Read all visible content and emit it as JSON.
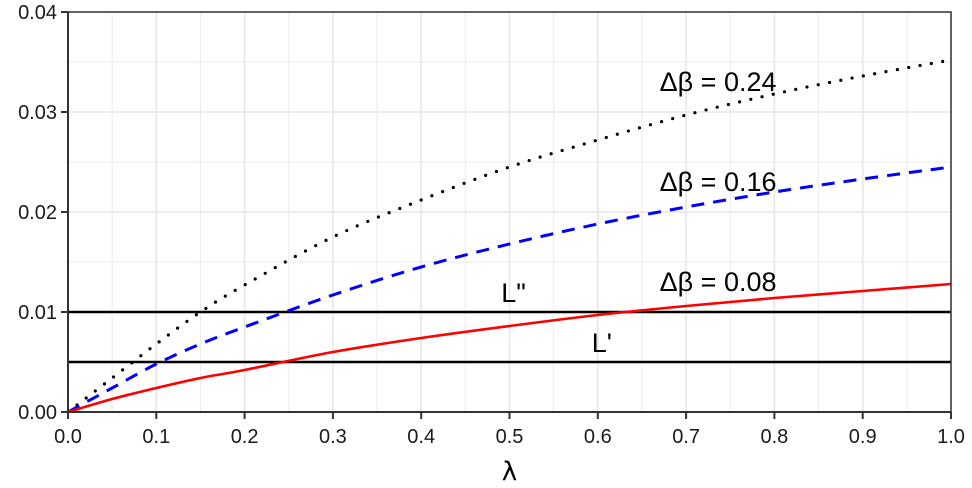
{
  "chart_data": {
    "type": "line",
    "title": "",
    "xlabel": "λ",
    "ylabel": "",
    "xlim": [
      0.0,
      1.0
    ],
    "ylim": [
      0.0,
      0.04
    ],
    "grid": true,
    "legend": "none (inline annotations)",
    "x_ticks": [
      "0.0",
      "0.1",
      "0.2",
      "0.3",
      "0.4",
      "0.5",
      "0.6",
      "0.7",
      "0.8",
      "0.9",
      "1.0"
    ],
    "y_ticks": [
      "0.00",
      "0.01",
      "0.02",
      "0.03",
      "0.04"
    ],
    "x": [
      0.0,
      0.05,
      0.1,
      0.15,
      0.2,
      0.3,
      0.4,
      0.5,
      0.6,
      0.7,
      0.8,
      0.9,
      1.0
    ],
    "series": [
      {
        "name": "Δβ = 0.24",
        "style": "dotted",
        "color": "#000000",
        "values": [
          0.0,
          0.0034,
          0.0068,
          0.01,
          0.0127,
          0.0175,
          0.0212,
          0.0245,
          0.0272,
          0.0297,
          0.0318,
          0.0336,
          0.0352
        ]
      },
      {
        "name": "Δβ = 0.16",
        "style": "dashed",
        "color": "#0000ff",
        "values": [
          0.0,
          0.0024,
          0.0048,
          0.0068,
          0.0085,
          0.0117,
          0.0145,
          0.0168,
          0.0188,
          0.0205,
          0.022,
          0.0233,
          0.0245
        ]
      },
      {
        "name": "Δβ = 0.08",
        "style": "solid",
        "color": "#ff0000",
        "values": [
          0.0,
          0.0013,
          0.0024,
          0.0034,
          0.0042,
          0.006,
          0.0074,
          0.0086,
          0.0097,
          0.0106,
          0.0114,
          0.0121,
          0.0128
        ]
      }
    ],
    "hlines": [
      {
        "name": "L''",
        "y": 0.01,
        "color": "#000000",
        "label_x": 0.5
      },
      {
        "name": "L'",
        "y": 0.005,
        "color": "#000000",
        "label_x": 0.6
      }
    ],
    "annotations": [
      {
        "text": "Δβ = 0.24",
        "x": 0.67,
        "y": 0.0331
      },
      {
        "text": "Δβ = 0.16",
        "x": 0.67,
        "y": 0.0231
      },
      {
        "text": "Δβ = 0.08",
        "x": 0.67,
        "y": 0.0131
      }
    ]
  }
}
